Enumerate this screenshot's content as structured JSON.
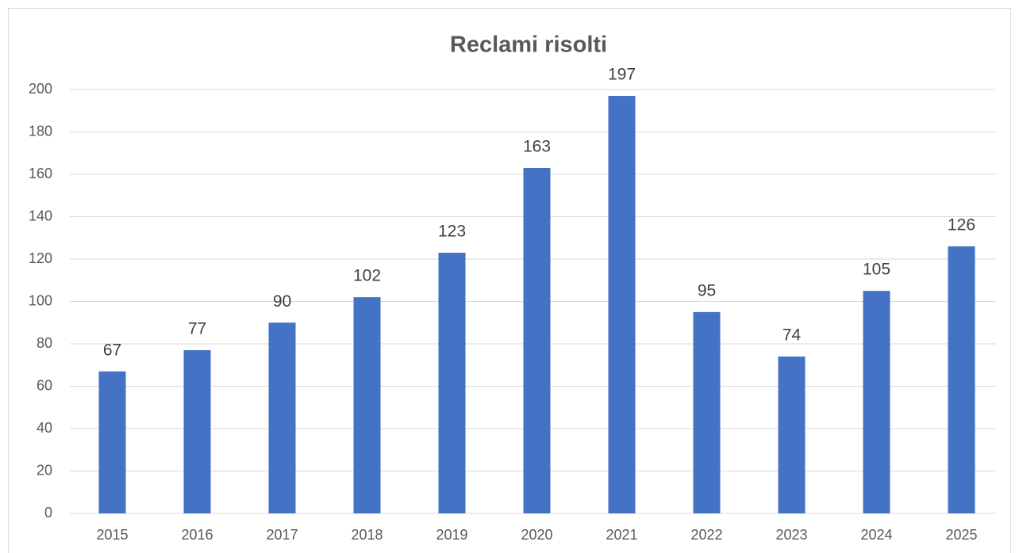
{
  "chart_data": {
    "type": "bar",
    "title": "Reclami risolti",
    "categories": [
      "2015",
      "2016",
      "2017",
      "2018",
      "2019",
      "2020",
      "2021",
      "2022",
      "2023",
      "2024",
      "2025"
    ],
    "values": [
      67,
      77,
      90,
      102,
      123,
      163,
      197,
      95,
      74,
      105,
      126
    ],
    "color": "#4472c4",
    "ylim": [
      0,
      200
    ],
    "yticks": [
      0,
      20,
      40,
      60,
      80,
      100,
      120,
      140,
      160,
      180,
      200
    ],
    "grid": true
  }
}
